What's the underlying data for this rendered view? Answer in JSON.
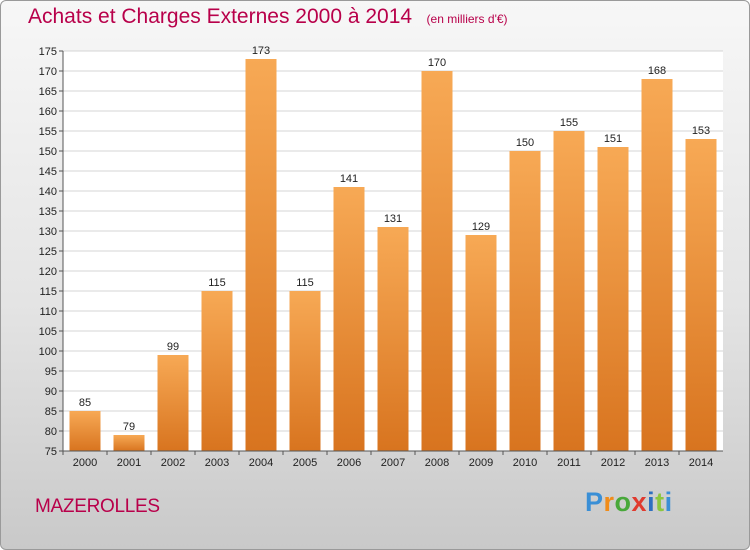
{
  "title": "Achats et Charges Externes 2000 à 2014",
  "subtitle": "(en milliers d'€)",
  "location": "MAZEROLLES",
  "brand": "Proxiti",
  "colors": {
    "title": "#b8004a",
    "bar_light": "#f7a955",
    "bar_dark": "#d8741f"
  },
  "chart_data": {
    "type": "bar",
    "categories": [
      "2000",
      "2001",
      "2002",
      "2003",
      "2004",
      "2005",
      "2006",
      "2007",
      "2008",
      "2009",
      "2010",
      "2011",
      "2012",
      "2013",
      "2014"
    ],
    "values": [
      85,
      79,
      99,
      115,
      173,
      115,
      141,
      131,
      170,
      129,
      150,
      155,
      151,
      168,
      153
    ],
    "ylim": [
      75,
      175
    ],
    "yticks": [
      75,
      80,
      85,
      90,
      95,
      100,
      105,
      110,
      115,
      120,
      125,
      130,
      135,
      140,
      145,
      150,
      155,
      160,
      165,
      170,
      175
    ],
    "grid": true,
    "xlabel": "",
    "ylabel": ""
  }
}
